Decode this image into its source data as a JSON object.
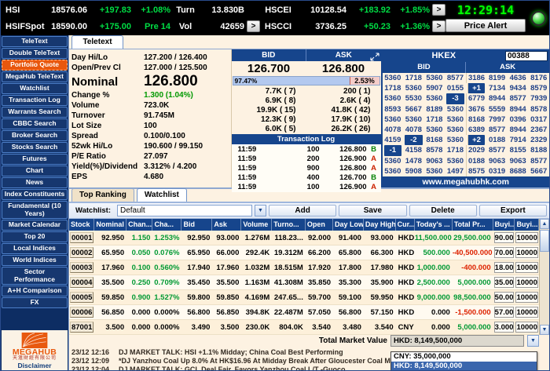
{
  "colors": {
    "navy": "#16458c",
    "orange_active": "#e8570e",
    "topbar_green": "#00dd44",
    "clock_green": "#00ff00",
    "quote_green": "#009900",
    "table_green": "#009933",
    "red": "#dd2200",
    "cream_bg": "#fdf2e2"
  },
  "top_bar": {
    "expand_label": ">",
    "clock": "12:29:14",
    "price_alert": "Price Alert",
    "row1": {
      "sym": "HSI",
      "val": "18576.06",
      "chg": "+197.83",
      "pct": "+1.08%",
      "t_label": "Turn",
      "t_val": "13.830B",
      "sym2": "HSCEI",
      "val2": "10128.54",
      "chg2": "+183.92",
      "pct2": "+1.85%"
    },
    "row2": {
      "sym": "HSIFSpot",
      "val": "18590.00",
      "chg": "+175.00",
      "pct": "Pre 14",
      "t_label": "Vol",
      "t_val": "42659",
      "sym2": "HSCCI",
      "val2": "3736.25",
      "chg2": "+50.23",
      "pct2": "+1.36%"
    }
  },
  "sidebar": {
    "items": [
      "TeleText",
      "Double TeleText",
      "Portfolio Quote",
      "MegaHub TeleText",
      "Watchlist",
      "Transaction Log",
      "Warrants Search",
      "CBBC Search",
      "Broker Search",
      "Stocks Search",
      "Futures",
      "Chart",
      "News",
      "Index Constituents",
      "Fundamental (10 Years)",
      "Market Calendar",
      "Top 20",
      "Local Indices",
      "World Indices",
      "Sector Performance",
      "A+H Comparison",
      "FX"
    ],
    "active": "Portfolio Quote",
    "logo": "MEGAHUB",
    "logo_cn": "天滙財經有限公司",
    "disclaimer": "Disclaimer"
  },
  "main_tab": {
    "label": "Teletext"
  },
  "quote": {
    "fields_top": [
      {
        "label": "Day Hi/Lo",
        "value": "127.200 / 126.400"
      },
      {
        "label": "Open/Prev Cl",
        "value": "127.000 / 125.500"
      }
    ],
    "nominal": {
      "label": "Nominal",
      "value": "126.800"
    },
    "change": {
      "label": "Change %",
      "value": "1.300 (1.04%)"
    },
    "fields": [
      {
        "label": "Volume",
        "value": "723.0K"
      },
      {
        "label": "Turnover",
        "value": "91.745M"
      },
      {
        "label": "Lot Size",
        "value": "100"
      },
      {
        "label": "Spread",
        "value": "0.100/0.100"
      },
      {
        "label": "52wk Hi/Lo",
        "value": "190.600 / 99.150"
      },
      {
        "label": "P/E Ratio",
        "value": "27.097"
      },
      {
        "label": "Yield(%)/Dividend",
        "value": "3.312% / 4.200"
      },
      {
        "label": "EPS",
        "value": "4.680"
      }
    ]
  },
  "bid_ask": {
    "bid_label": "BID",
    "ask_label": "ASK",
    "bid": "126.700",
    "ask": "126.800",
    "bid_pct": "97.47%",
    "ask_pct": "2.53%",
    "bid_queue": [
      "7.7K ( 7)",
      "6.9K ( 8)",
      "19.9K ( 15)",
      "12.3K ( 9)",
      "6.0K ( 5)"
    ],
    "ask_queue": [
      "200 ( 1)",
      "2.6K ( 4)",
      "41.8K ( 42)",
      "17.9K ( 10)",
      "26.2K ( 26)"
    ]
  },
  "transaction_log": {
    "title": "Transaction Log",
    "rows": [
      [
        "11:59",
        "100",
        "126.800",
        "B"
      ],
      [
        "11:59",
        "200",
        "126.900",
        "A"
      ],
      [
        "11:59",
        "900",
        "126.800",
        "A"
      ],
      [
        "11:59",
        "400",
        "126.700",
        "B"
      ],
      [
        "11:59",
        "100",
        "126.900",
        "A"
      ]
    ]
  },
  "hkex": {
    "title": "HKEX",
    "code": "00388",
    "bid_label": "BID",
    "ask_label": "ASK",
    "rows": [
      [
        "5360",
        "1718",
        "5360",
        "8577",
        "3186",
        "8199",
        "4636",
        "8176"
      ],
      [
        "1718",
        "5360",
        "5907",
        "0155",
        "+1",
        "7134",
        "9434",
        "8579"
      ],
      [
        "5360",
        "5530",
        "5360",
        "-3",
        "6779",
        "8944",
        "8577",
        "7939"
      ],
      [
        "8593",
        "5667",
        "8189",
        "5360",
        "3676",
        "5559",
        "8944",
        "8578"
      ],
      [
        "5360",
        "5360",
        "1718",
        "5360",
        "8168",
        "7997",
        "0396",
        "0317"
      ],
      [
        "4078",
        "4078",
        "5360",
        "5360",
        "6389",
        "8577",
        "8944",
        "2367"
      ],
      [
        "4159",
        "-2",
        "8168",
        "5360",
        "+2",
        "0188",
        "7914",
        "2329"
      ],
      [
        "-1",
        "4158",
        "8578",
        "1718",
        "2029",
        "8577",
        "8155",
        "8188"
      ],
      [
        "5360",
        "1478",
        "9063",
        "5360",
        "0188",
        "9063",
        "9063",
        "8577"
      ],
      [
        "5360",
        "5908",
        "5360",
        "1497",
        "8575",
        "0319",
        "8688",
        "5667"
      ]
    ],
    "footer": "www.megahubhk.com"
  },
  "watchlist": {
    "tab_top_ranking": "Top Ranking",
    "tab_watchlist": "Watchlist",
    "label": "Watchlist:",
    "selected": "Default",
    "buttons": [
      "Add",
      "Save",
      "Delete",
      "Export"
    ],
    "columns": [
      "Stock",
      "Nominal",
      "Chan...",
      "Cha...",
      "Bid",
      "Ask",
      "Volume",
      "Turno...",
      "Open",
      "Day Low",
      "Day High",
      "Cur...",
      "Today's ...",
      "Total Pr...",
      "Buyi...",
      "Buyi..."
    ],
    "rows": [
      [
        "00001",
        "92.950",
        "1.150",
        "1.253%",
        "92.950",
        "93.000",
        "1.276M",
        "118.23...",
        "92.000",
        "91.400",
        "93.000",
        "HKD",
        "11,500.000",
        "29,500.000",
        "90.000",
        "10000"
      ],
      [
        "00002",
        "65.950",
        "0.050",
        "0.076%",
        "65.950",
        "66.000",
        "292.4K",
        "19.312M",
        "66.200",
        "65.800",
        "66.300",
        "HKD",
        "500.000",
        "-40,500.000",
        "70.000",
        "10000"
      ],
      [
        "00003",
        "17.960",
        "0.100",
        "0.560%",
        "17.940",
        "17.960",
        "1.032M",
        "18.515M",
        "17.920",
        "17.800",
        "17.980",
        "HKD",
        "1,000.000",
        "-400.000",
        "18.000",
        "10000"
      ],
      [
        "00004",
        "35.500",
        "0.250",
        "0.709%",
        "35.450",
        "35.500",
        "1.163M",
        "41.308M",
        "35.850",
        "35.300",
        "35.900",
        "HKD",
        "2,500.000",
        "5,000.000",
        "35.000",
        "10000"
      ],
      [
        "00005",
        "59.850",
        "0.900",
        "1.527%",
        "59.800",
        "59.850",
        "4.169M",
        "247.65...",
        "59.700",
        "59.100",
        "59.950",
        "HKD",
        "9,000.000",
        "98,500.000",
        "50.000",
        "10000"
      ],
      [
        "00006",
        "56.850",
        "0.000",
        "0.000%",
        "56.800",
        "56.850",
        "394.8K",
        "22.487M",
        "57.050",
        "56.800",
        "57.150",
        "HKD",
        "0.000",
        "-1,500.000",
        "57.000",
        "10000"
      ],
      [
        "87001",
        "3.500",
        "0.000",
        "0.000%",
        "3.490",
        "3.500",
        "230.0K",
        "804.0K",
        "3.540",
        "3.480",
        "3.540",
        "CNY",
        "0.000",
        "5,000.000",
        "3.000",
        "10000"
      ]
    ],
    "total_label": "Total Market Value",
    "total_value": "HKD: 8,149,500,000",
    "options": [
      "CNY: 35,000,000",
      "HKD: 8,149,500,000"
    ]
  },
  "news": {
    "items": [
      {
        "date": "23/12",
        "time": "12:16",
        "text": "DJ MARKET TALK: HSI +1.1% Midday; China Coal Best Performing"
      },
      {
        "date": "23/12",
        "time": "12:09",
        "text": "*DJ Yanzhou Coal Up 8.0% At HK$16.96 At Midday Break After Gloucester Coal Merger Bid"
      },
      {
        "date": "23/12",
        "time": "12:04",
        "text": "DJ MARKET TALK: GCL Deal Fair, Favors Yanzhou Coal L/T -Guoco"
      }
    ]
  }
}
